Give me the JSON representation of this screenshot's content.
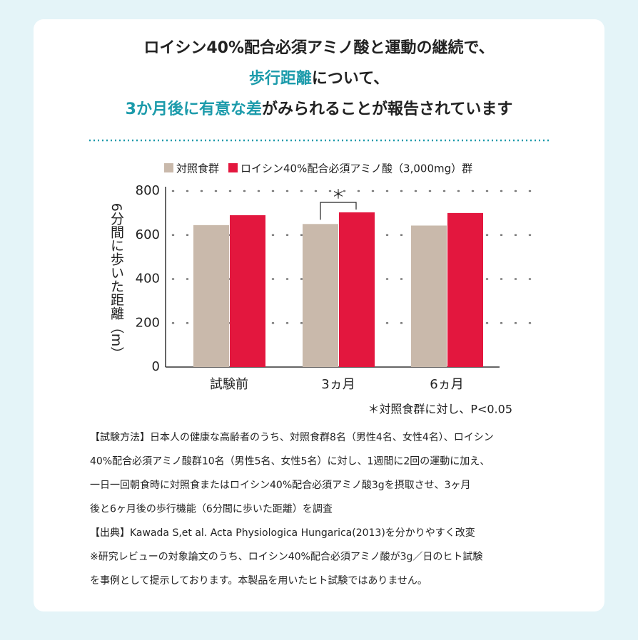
{
  "header": {
    "lines": [
      [
        "ロイシン40%配合必須アミノ酸と運動の継続で、"
      ],
      [
        "歩行距離",
        "について、"
      ],
      [
        "3か月後に有意な差",
        "がみられることが報告されています"
      ]
    ],
    "highlight_color": "#1c9bab"
  },
  "chart_data": {
    "type": "bar",
    "y_label": "6分間に歩いた距離（m）",
    "categories": [
      "試験前",
      "3ヵ月",
      "6ヵ月"
    ],
    "series": [
      {
        "name": "対照食群",
        "color": "#c9b9ab",
        "values": [
          645,
          650,
          643
        ]
      },
      {
        "name": "ロイシン40%配合必須アミノ酸（3,000mg）群",
        "color": "#e3173e",
        "values": [
          690,
          703,
          700
        ]
      }
    ],
    "ylim": [
      0,
      800
    ],
    "yticks": [
      0,
      200,
      400,
      600,
      800
    ],
    "grid": true,
    "annotation": "＊",
    "footnote": "＊対照食群に対し、P<0.05"
  },
  "notes": [
    "【試験方法】日本人の健康な高齢者のうち、対照食群8名（男性4名、女性4名）、ロイシン",
    "40%配合必須アミノ酸群10名（男性5名、女性5名）に対し、1週間に2回の運動に加え、",
    "一日一回朝食時に対照食またはロイシン40%配合必須アミノ酸3gを摂取させ、3ヶ月",
    "後と6ヶ月後の歩行機能（6分間に歩いた距離）を調査",
    "【出典】Kawada S,et al. Acta Physiologica Hungarica(2013)を分かりやすく改変",
    "※研究レビューの対象論文のうち、ロイシン40%配合必須アミノ酸が3g／日のヒト試験",
    "を事例として提示しております。本製品を用いたヒト試験ではありません。"
  ]
}
